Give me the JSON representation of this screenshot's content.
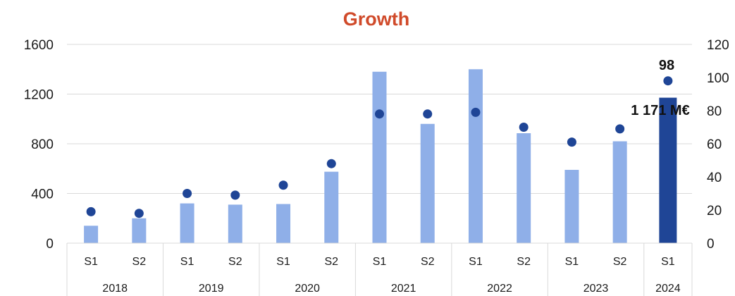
{
  "chart_data": {
    "type": "bar",
    "title": "Growth",
    "categories": [
      "S1",
      "S2",
      "S1",
      "S2",
      "S1",
      "S2",
      "S1",
      "S2",
      "S1",
      "S2",
      "S1",
      "S2",
      "S1"
    ],
    "years": [
      "2018",
      "2019",
      "2020",
      "2021",
      "2022",
      "2023",
      "2024"
    ],
    "series": [
      {
        "axis": "left",
        "kind": "bar",
        "values": [
          140,
          200,
          320,
          310,
          315,
          575,
          1380,
          960,
          1400,
          885,
          590,
          820,
          1171
        ]
      },
      {
        "axis": "right",
        "kind": "scatter",
        "values": [
          19,
          18,
          30,
          29,
          35,
          48,
          78,
          78,
          79,
          70,
          61,
          69,
          98
        ]
      }
    ],
    "ylim_left": [
      0,
      1600
    ],
    "yticks_left": [
      0,
      400,
      800,
      1200,
      1600
    ],
    "ylim_right": [
      0,
      120
    ],
    "yticks_right": [
      0,
      20,
      40,
      60,
      80,
      100,
      120
    ],
    "annotations": {
      "last_bar_label": "1 171 M€",
      "last_point_label": "98"
    },
    "colors": {
      "bar": "#8FAFE8",
      "bar_highlight": "#1F4596",
      "point": "#1F4596",
      "title": "#D04A2A",
      "grid": "#d9d9d9"
    },
    "grid": true
  }
}
